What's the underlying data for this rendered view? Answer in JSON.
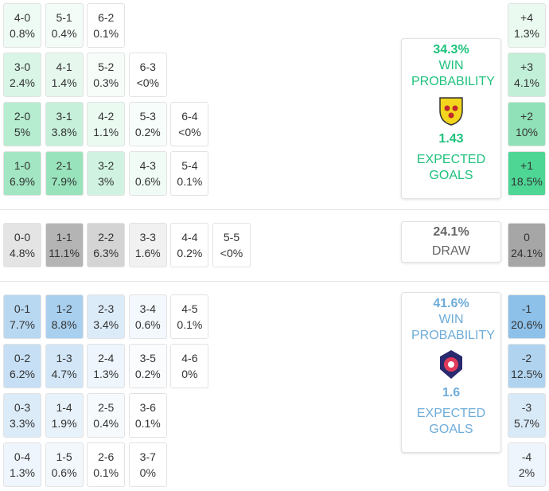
{
  "home": {
    "rows": [
      [
        {
          "score": "4-0",
          "prob": "0.8%",
          "color": "#eefbf4"
        },
        {
          "score": "5-1",
          "prob": "0.4%",
          "color": "#f4fcf8"
        },
        {
          "score": "6-2",
          "prob": "0.1%",
          "color": "#ffffff"
        }
      ],
      [
        {
          "score": "3-0",
          "prob": "2.4%",
          "color": "#d8f5e6"
        },
        {
          "score": "4-1",
          "prob": "1.4%",
          "color": "#e6f8ee"
        },
        {
          "score": "5-2",
          "prob": "0.3%",
          "color": "#f6fdf9"
        },
        {
          "score": "6-3",
          "prob": "<0%",
          "color": "#ffffff"
        }
      ],
      [
        {
          "score": "2-0",
          "prob": "5%",
          "color": "#b6ecd0"
        },
        {
          "score": "3-1",
          "prob": "3.8%",
          "color": "#c6f0da"
        },
        {
          "score": "4-2",
          "prob": "1.1%",
          "color": "#eafaf1"
        },
        {
          "score": "5-3",
          "prob": "0.2%",
          "color": "#f7fdfa"
        },
        {
          "score": "6-4",
          "prob": "<0%",
          "color": "#ffffff"
        }
      ],
      [
        {
          "score": "1-0",
          "prob": "6.9%",
          "color": "#a2e6c3"
        },
        {
          "score": "2-1",
          "prob": "7.9%",
          "color": "#98e3bc"
        },
        {
          "score": "3-2",
          "prob": "3%",
          "color": "#d0f3e1"
        },
        {
          "score": "4-3",
          "prob": "0.6%",
          "color": "#f0fbf5"
        },
        {
          "score": "5-4",
          "prob": "0.1%",
          "color": "#ffffff"
        }
      ]
    ],
    "margins": [
      {
        "score": "+4",
        "prob": "1.3%",
        "color": "#eafaf1"
      },
      {
        "score": "+3",
        "prob": "4.1%",
        "color": "#c2efd8"
      },
      {
        "score": "+2",
        "prob": "10%",
        "color": "#90e1b7"
      },
      {
        "score": "+1",
        "prob": "18.5%",
        "color": "#4ed695"
      }
    ],
    "panel": {
      "win": "34.3%",
      "win_label": "WIN PROBABILITY",
      "xg": "1.43",
      "xg_label": "EXPECTED GOALS",
      "color": "#1ec27c"
    }
  },
  "draw": {
    "rows": [
      [
        {
          "score": "0-0",
          "prob": "4.8%",
          "color": "#e4e4e4"
        },
        {
          "score": "1-1",
          "prob": "11.1%",
          "color": "#b4b4b4"
        },
        {
          "score": "2-2",
          "prob": "6.3%",
          "color": "#d4d4d4"
        },
        {
          "score": "3-3",
          "prob": "1.6%",
          "color": "#f1f1f1"
        },
        {
          "score": "4-4",
          "prob": "0.2%",
          "color": "#ffffff"
        },
        {
          "score": "5-5",
          "prob": "<0%",
          "color": "#ffffff"
        }
      ]
    ],
    "margins": [
      {
        "score": "0",
        "prob": "24.1%",
        "color": "#a6a6a6"
      }
    ],
    "panel": {
      "win": "24.1%",
      "win_label": "DRAW",
      "color": "#666666"
    }
  },
  "away": {
    "rows": [
      [
        {
          "score": "0-1",
          "prob": "7.7%",
          "color": "#b8d8f2"
        },
        {
          "score": "1-2",
          "prob": "8.8%",
          "color": "#a8cfee"
        },
        {
          "score": "2-3",
          "prob": "3.4%",
          "color": "#dcebf8"
        },
        {
          "score": "3-4",
          "prob": "0.6%",
          "color": "#f3f8fd"
        },
        {
          "score": "4-5",
          "prob": "0.1%",
          "color": "#ffffff"
        }
      ],
      [
        {
          "score": "0-2",
          "prob": "6.2%",
          "color": "#c6dff4"
        },
        {
          "score": "1-3",
          "prob": "4.7%",
          "color": "#d2e6f7"
        },
        {
          "score": "2-4",
          "prob": "1.3%",
          "color": "#eef5fc"
        },
        {
          "score": "3-5",
          "prob": "0.2%",
          "color": "#fafcfe"
        },
        {
          "score": "4-6",
          "prob": "0%",
          "color": "#ffffff"
        }
      ],
      [
        {
          "score": "0-3",
          "prob": "3.3%",
          "color": "#dcebf8"
        },
        {
          "score": "1-4",
          "prob": "1.9%",
          "color": "#e8f2fb"
        },
        {
          "score": "2-5",
          "prob": "0.4%",
          "color": "#f6fafd"
        },
        {
          "score": "3-6",
          "prob": "0.1%",
          "color": "#ffffff"
        }
      ],
      [
        {
          "score": "0-4",
          "prob": "1.3%",
          "color": "#eef5fc"
        },
        {
          "score": "1-5",
          "prob": "0.6%",
          "color": "#f3f8fd"
        },
        {
          "score": "2-6",
          "prob": "0.1%",
          "color": "#ffffff"
        },
        {
          "score": "3-7",
          "prob": "0%",
          "color": "#ffffff"
        }
      ]
    ],
    "margins": [
      {
        "score": "-1",
        "prob": "20.6%",
        "color": "#8ec1ea"
      },
      {
        "score": "-2",
        "prob": "12.5%",
        "color": "#b0d4f0"
      },
      {
        "score": "-3",
        "prob": "5.7%",
        "color": "#d8e9f7"
      },
      {
        "score": "-4",
        "prob": "2%",
        "color": "#eef5fc"
      }
    ],
    "panel": {
      "win": "41.6%",
      "win_label": "WIN PROBABILITY",
      "xg": "1.6",
      "xg_label": "EXPECTED GOALS",
      "color": "#6eacd9"
    }
  }
}
